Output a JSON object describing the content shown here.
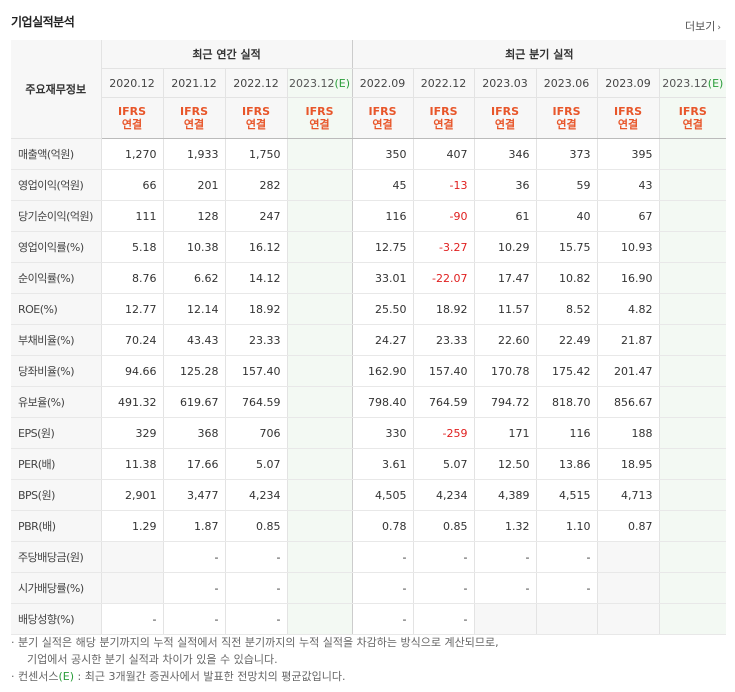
{
  "header": {
    "title": "기업실적분석",
    "more_label": "더보기",
    "more_icon": "chevron-right"
  },
  "table": {
    "row_header_label": "주요재무정보",
    "groups": {
      "annual": "최근 연간 실적",
      "quarterly": "최근 분기 실적"
    },
    "periods": [
      "2020.12",
      "2021.12",
      "2022.12",
      "2023.12(E)",
      "2022.09",
      "2022.12",
      "2023.03",
      "2023.06",
      "2023.09",
      "2023.12(E)"
    ],
    "estimate_tag": "(E)",
    "period_bases": [
      "2020.12",
      "2021.12",
      "2022.12",
      "2023.12",
      "2022.09",
      "2022.12",
      "2023.03",
      "2023.06",
      "2023.09",
      "2023.12"
    ],
    "ifrs_label": "IFRS",
    "consolidated_label": "연결",
    "rows": [
      {
        "label": "매출액(억원)",
        "values": [
          "1,270",
          "1,933",
          "1,750",
          "",
          "350",
          "407",
          "346",
          "373",
          "395",
          ""
        ]
      },
      {
        "label": "영업이익(억원)",
        "values": [
          "66",
          "201",
          "282",
          "",
          "45",
          "-13",
          "36",
          "59",
          "43",
          ""
        ]
      },
      {
        "label": "당기순이익(억원)",
        "values": [
          "111",
          "128",
          "247",
          "",
          "116",
          "-90",
          "61",
          "40",
          "67",
          ""
        ]
      },
      {
        "label": "영업이익률(%)",
        "values": [
          "5.18",
          "10.38",
          "16.12",
          "",
          "12.75",
          "-3.27",
          "10.29",
          "15.75",
          "10.93",
          ""
        ]
      },
      {
        "label": "순이익률(%)",
        "values": [
          "8.76",
          "6.62",
          "14.12",
          "",
          "33.01",
          "-22.07",
          "17.47",
          "10.82",
          "16.90",
          ""
        ]
      },
      {
        "label": "ROE(%)",
        "values": [
          "12.77",
          "12.14",
          "18.92",
          "",
          "25.50",
          "18.92",
          "11.57",
          "8.52",
          "4.82",
          ""
        ]
      },
      {
        "label": "부채비율(%)",
        "values": [
          "70.24",
          "43.43",
          "23.33",
          "",
          "24.27",
          "23.33",
          "22.60",
          "22.49",
          "21.87",
          ""
        ]
      },
      {
        "label": "당좌비율(%)",
        "values": [
          "94.66",
          "125.28",
          "157.40",
          "",
          "162.90",
          "157.40",
          "170.78",
          "175.42",
          "201.47",
          ""
        ]
      },
      {
        "label": "유보율(%)",
        "values": [
          "491.32",
          "619.67",
          "764.59",
          "",
          "798.40",
          "764.59",
          "794.72",
          "818.70",
          "856.67",
          ""
        ]
      },
      {
        "label": "EPS(원)",
        "values": [
          "329",
          "368",
          "706",
          "",
          "330",
          "-259",
          "171",
          "116",
          "188",
          ""
        ]
      },
      {
        "label": "PER(배)",
        "values": [
          "11.38",
          "17.66",
          "5.07",
          "",
          "3.61",
          "5.07",
          "12.50",
          "13.86",
          "18.95",
          ""
        ]
      },
      {
        "label": "BPS(원)",
        "values": [
          "2,901",
          "3,477",
          "4,234",
          "",
          "4,505",
          "4,234",
          "4,389",
          "4,515",
          "4,713",
          ""
        ]
      },
      {
        "label": "PBR(배)",
        "values": [
          "1.29",
          "1.87",
          "0.85",
          "",
          "0.78",
          "0.85",
          "1.32",
          "1.10",
          "0.87",
          ""
        ]
      },
      {
        "label": "주당배당금(원)",
        "values": [
          "",
          "-",
          "-",
          "",
          "-",
          "-",
          "-",
          "-",
          "",
          ""
        ]
      },
      {
        "label": "시가배당률(%)",
        "values": [
          "",
          "-",
          "-",
          "",
          "-",
          "-",
          "-",
          "-",
          "",
          ""
        ]
      },
      {
        "label": "배당성향(%)",
        "values": [
          "-",
          "-",
          "-",
          "",
          "-",
          "-",
          "",
          "",
          "",
          ""
        ]
      }
    ],
    "negative_color": "#e02020",
    "ifrs_color": "#e8562a"
  },
  "notes": {
    "line1": "· 분기 실적은 해당 분기까지의 누적 실적에서 직전 분기까지의 누적 실적을 차감하는 방식으로 계산되므로,",
    "line2": "기업에서 공시한 분기 실적과 차이가 있을 수 있습니다.",
    "line3_prefix": "· 컨센서스",
    "line3_tag": "(E)",
    "line3_suffix": " : 최근 3개월간 증권사에서 발표한 전망치의 평균값입니다."
  }
}
